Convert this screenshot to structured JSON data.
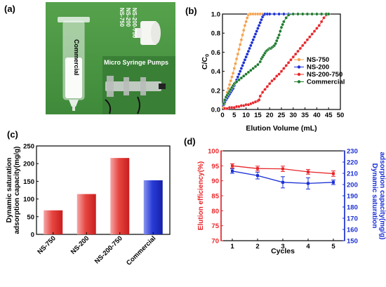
{
  "panels": {
    "a": "(a)",
    "b": "(b)",
    "c": "(c)",
    "d": "(d)"
  },
  "photo": {
    "syringe_label": "Commercial",
    "column_labels": [
      "NS-750",
      "NS-200",
      "NS-200-750"
    ],
    "pump_label": "Micro Syringe Pumps"
  },
  "chart_data": [
    {
      "panel": "b",
      "type": "line",
      "xlabel": "Elution Volume (mL)",
      "ylabel": "C/C0",
      "xlim": [
        0,
        50
      ],
      "ylim": [
        0.0,
        1.0
      ],
      "xticks": [
        "0",
        "5",
        "10",
        "15",
        "20",
        "25",
        "30",
        "35",
        "40",
        "45",
        "50"
      ],
      "yticks": [
        "0.0",
        "0.2",
        "0.4",
        "0.6",
        "0.8",
        "1.0"
      ],
      "legend": "right",
      "series": [
        {
          "name": "NS-750",
          "color": "#f5a04a",
          "marker": "circle",
          "x": [
            0.5,
            1,
            1.5,
            2,
            2.5,
            3,
            3.5,
            4,
            4.5,
            5,
            5.5,
            6,
            6.5,
            7,
            7.5,
            8,
            8.5,
            9,
            9.5,
            10,
            10.5,
            11,
            11.5,
            12,
            13,
            14,
            15,
            16,
            17,
            18,
            19,
            20,
            22,
            24,
            26,
            28,
            30,
            32,
            34,
            36,
            38,
            40,
            42,
            44,
            45
          ],
          "y": [
            0.02,
            0.06,
            0.12,
            0.18,
            0.22,
            0.26,
            0.3,
            0.34,
            0.38,
            0.43,
            0.48,
            0.53,
            0.58,
            0.63,
            0.68,
            0.73,
            0.78,
            0.83,
            0.88,
            0.92,
            0.96,
            0.99,
            1.0,
            1.0,
            1.0,
            1.0,
            1.0,
            1.0,
            1.0,
            1.0,
            1.0,
            1.0,
            1.0,
            1.0,
            1.0,
            1.0,
            1.0,
            1.0,
            1.0,
            1.0,
            1.0,
            1.0,
            1.0,
            1.0,
            1.0
          ]
        },
        {
          "name": "NS-200",
          "color": "#1a2fd6",
          "marker": "circle",
          "x": [
            0.5,
            1,
            1.5,
            2,
            2.5,
            3,
            3.5,
            4,
            4.5,
            5,
            5.5,
            6,
            6.5,
            7,
            7.5,
            8,
            8.5,
            9,
            9.5,
            10,
            10.5,
            11,
            11.5,
            12,
            12.5,
            13,
            13.5,
            14,
            14.5,
            15,
            15.5,
            16,
            16.5,
            17,
            17.5,
            18,
            19,
            20,
            22,
            24,
            26,
            28,
            30,
            32,
            34,
            36,
            38,
            40,
            42,
            44,
            45
          ],
          "y": [
            0.05,
            0.08,
            0.1,
            0.12,
            0.14,
            0.16,
            0.18,
            0.2,
            0.22,
            0.25,
            0.28,
            0.31,
            0.34,
            0.37,
            0.4,
            0.43,
            0.46,
            0.49,
            0.52,
            0.55,
            0.58,
            0.61,
            0.64,
            0.67,
            0.7,
            0.73,
            0.76,
            0.79,
            0.82,
            0.85,
            0.88,
            0.91,
            0.94,
            0.97,
            0.99,
            1.0,
            1.0,
            1.0,
            1.0,
            1.0,
            1.0,
            1.0,
            1.0,
            1.0,
            1.0,
            1.0,
            1.0,
            1.0,
            1.0,
            1.0,
            1.0
          ]
        },
        {
          "name": "NS-200-750",
          "color": "#e8262a",
          "marker": "circle",
          "x": [
            1,
            2,
            3,
            4,
            5,
            6,
            7,
            8,
            9,
            10,
            11,
            12,
            13,
            14,
            15,
            15.5,
            16,
            17,
            18,
            19,
            20,
            21,
            22,
            23,
            24,
            25,
            26,
            27,
            28,
            29,
            30,
            31,
            32,
            33,
            34,
            35,
            36,
            37,
            38,
            39,
            40,
            41,
            42,
            43,
            44,
            45
          ],
          "y": [
            0.01,
            0.01,
            0.02,
            0.02,
            0.02,
            0.03,
            0.03,
            0.04,
            0.04,
            0.05,
            0.05,
            0.06,
            0.07,
            0.08,
            0.09,
            0.1,
            0.14,
            0.18,
            0.21,
            0.24,
            0.27,
            0.3,
            0.32,
            0.35,
            0.37,
            0.4,
            0.43,
            0.46,
            0.49,
            0.52,
            0.55,
            0.58,
            0.61,
            0.64,
            0.67,
            0.7,
            0.73,
            0.76,
            0.79,
            0.82,
            0.85,
            0.88,
            0.92,
            0.96,
            0.99,
            1.0
          ]
        },
        {
          "name": "Commercial",
          "color": "#1d7a2c",
          "marker": "circle",
          "x": [
            0.5,
            1,
            1.5,
            2,
            2.5,
            3,
            3.5,
            4,
            4.5,
            5,
            5.5,
            6,
            7,
            8,
            9,
            10,
            11,
            12,
            13,
            14,
            15,
            16,
            16.5,
            17,
            17.5,
            18,
            18.5,
            19,
            19.5,
            20,
            20.5,
            21,
            21.5,
            22,
            22.5,
            23,
            23.5,
            24,
            24.5,
            25,
            25.5,
            26,
            27,
            28,
            30,
            32,
            34,
            36,
            38,
            40,
            42,
            44,
            45
          ],
          "y": [
            0.06,
            0.1,
            0.13,
            0.15,
            0.17,
            0.19,
            0.21,
            0.23,
            0.25,
            0.27,
            0.28,
            0.29,
            0.31,
            0.33,
            0.35,
            0.37,
            0.39,
            0.41,
            0.43,
            0.45,
            0.47,
            0.5,
            0.53,
            0.55,
            0.57,
            0.59,
            0.61,
            0.62,
            0.63,
            0.64,
            0.64,
            0.65,
            0.66,
            0.67,
            0.69,
            0.72,
            0.75,
            0.78,
            0.82,
            0.86,
            0.89,
            0.92,
            0.96,
            0.99,
            1.0,
            1.0,
            1.0,
            1.0,
            1.0,
            1.0,
            1.0,
            1.0,
            1.0
          ]
        }
      ]
    },
    {
      "panel": "c",
      "type": "bar",
      "ylabel": "Dynamic saturation adsorption capacity(mg/g)",
      "ylim": [
        0,
        250
      ],
      "yticks": [
        "0",
        "50",
        "100",
        "150",
        "200",
        "250"
      ],
      "categories": [
        "NS-750",
        "NS-200",
        "NS-200-750",
        "Commercial"
      ],
      "values": [
        68,
        114,
        216,
        153
      ],
      "colors": [
        "#e9413f",
        "#e9413f",
        "#e9413f",
        "#2a3cd8"
      ]
    },
    {
      "panel": "d",
      "type": "line",
      "xlabel": "Cycles",
      "ylabel_left": "Elution efficiency(%)",
      "ylabel_right": "Dynamic saturation adsorption capacity(mg/g)",
      "categories": [
        "1",
        "2",
        "3",
        "4",
        "5"
      ],
      "ylim_left": [
        70,
        100
      ],
      "yticks_left": [
        "70",
        "75",
        "80",
        "85",
        "90",
        "95",
        "100"
      ],
      "ylim_right": [
        150,
        230
      ],
      "yticks_right": [
        "150",
        "160",
        "170",
        "180",
        "190",
        "200",
        "210",
        "220",
        "230"
      ],
      "series": [
        {
          "name": "Elution efficiency(%)",
          "axis": "left",
          "color": "#e8262a",
          "values": [
            95.0,
            94.1,
            94.0,
            93.0,
            92.4
          ],
          "errors": [
            0.7,
            0.8,
            0.9,
            0.8,
            0.9
          ]
        },
        {
          "name": "Dynamic saturation adsorption capacity(mg/g)",
          "axis": "right",
          "color": "#1a2fd6",
          "values": [
            212,
            208,
            202,
            201,
            202
          ],
          "errors": [
            2,
            3,
            5,
            5,
            2
          ]
        }
      ]
    }
  ]
}
